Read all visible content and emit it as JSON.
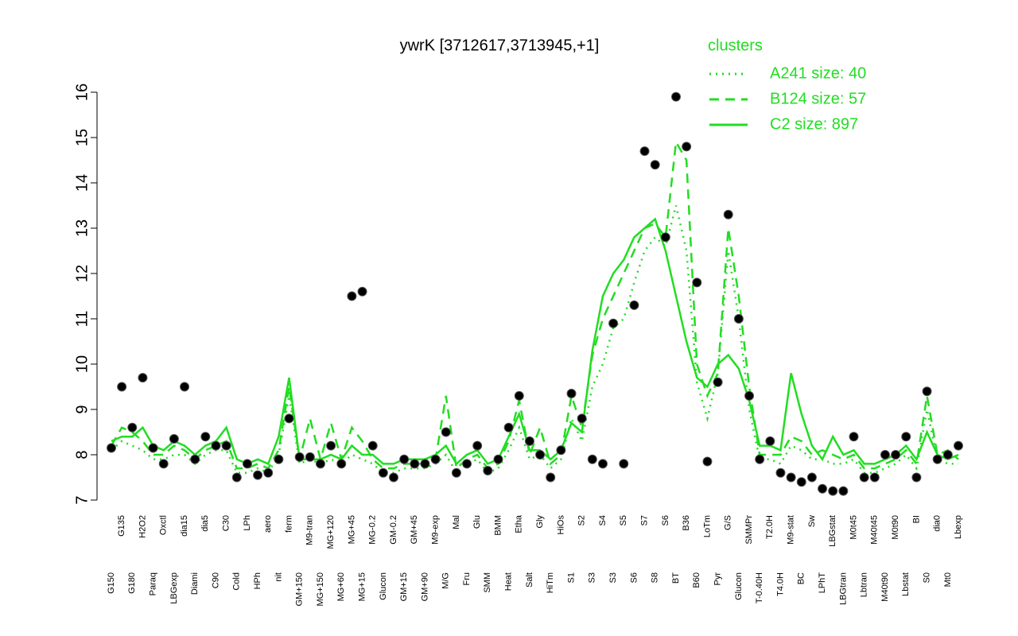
{
  "chart_data": {
    "type": "line",
    "title": "ywrK [3712617,3713945,+1]",
    "legend_title": "clusters",
    "ylim": [
      7,
      16
    ],
    "yticks": [
      7,
      8,
      9,
      10,
      11,
      12,
      13,
      14,
      15,
      16
    ],
    "categories": [
      "G150",
      "G135",
      "G180",
      "H2O2",
      "Paraq",
      "Oxctl",
      "LBGexp",
      "dia15",
      "Diami",
      "dia5",
      "C90",
      "C30",
      "Cold",
      "LPh",
      "HPh",
      "aero",
      "nit",
      "ferm",
      "GM+150",
      "M9-tran",
      "MG+150",
      "MG+120",
      "MG+60",
      "MG+45",
      "MG+15",
      "MG-0.2",
      "Glucon",
      "GM-0.2",
      "GM+15",
      "GM+45",
      "GM+90",
      "M9-exp",
      "M/G",
      "Mal",
      "Fru",
      "Glu",
      "SMM",
      "BMM",
      "Heat",
      "Etha",
      "Salt",
      "Gly",
      "HiTm",
      "HiOs",
      "S1",
      "S2",
      "S3",
      "S4",
      "S3",
      "S5",
      "S6",
      "S7",
      "S8",
      "S6",
      "BT",
      "B36",
      "B60",
      "LoTm",
      "Pyr",
      "G/S",
      "Glucon",
      "SMMPr",
      "T-0.40H",
      "T2.0H",
      "T4.0H",
      "M9-stat",
      "BC",
      "Sw",
      "LPhT",
      "LBGstat",
      "LBGtran",
      "M0t45",
      "Lbtran",
      "M40t45",
      "M40t90",
      "M0t90",
      "Lbstat",
      "BI",
      "S0",
      "dia0",
      "Mt0",
      "Lbexp"
    ],
    "points": {
      "color": "#000000",
      "values": [
        8.15,
        9.5,
        8.6,
        9.7,
        8.15,
        7.8,
        8.35,
        9.5,
        7.9,
        8.4,
        8.2,
        8.2,
        7.5,
        7.8,
        7.55,
        7.6,
        7.9,
        8.8,
        7.95,
        7.95,
        7.8,
        8.2,
        7.8,
        11.5,
        11.6,
        8.2,
        7.6,
        7.5,
        7.9,
        7.8,
        7.8,
        7.9,
        8.5,
        7.6,
        7.8,
        8.2,
        7.65,
        7.9,
        8.6,
        9.3,
        8.3,
        8.0,
        7.5,
        8.1,
        9.35,
        8.8,
        7.9,
        7.8,
        10.9,
        7.8,
        11.3,
        14.7,
        14.4,
        12.8,
        15.9,
        14.8,
        11.8,
        7.85,
        9.6,
        13.3,
        11.0,
        9.3,
        7.9,
        8.3,
        7.6,
        7.5,
        7.4,
        7.5,
        7.25,
        7.2,
        7.2,
        8.4,
        7.5,
        7.5,
        8.0,
        8.0,
        8.4,
        7.5,
        9.4,
        7.9,
        8.0,
        8.2
      ]
    },
    "series": [
      {
        "name": "A241 size: 40",
        "color": "#22dd22",
        "dash": "dotted",
        "values": [
          8.1,
          8.3,
          8.2,
          8.1,
          7.9,
          7.9,
          8.0,
          8.0,
          7.8,
          8.0,
          8.1,
          8.1,
          7.6,
          7.6,
          7.7,
          7.6,
          8.0,
          9.3,
          7.8,
          7.9,
          7.8,
          7.9,
          7.8,
          8.0,
          7.9,
          7.8,
          7.6,
          7.6,
          7.7,
          7.7,
          7.7,
          7.8,
          8.0,
          7.6,
          7.8,
          7.9,
          7.6,
          7.7,
          8.1,
          8.6,
          7.9,
          8.0,
          7.7,
          7.9,
          8.8,
          8.3,
          9.5,
          10.0,
          10.8,
          11.0,
          11.8,
          12.5,
          12.8,
          12.6,
          13.5,
          12.5,
          9.6,
          8.8,
          9.8,
          12.5,
          11.0,
          9.0,
          7.9,
          7.9,
          7.8,
          8.2,
          8.1,
          7.9,
          7.9,
          7.8,
          7.8,
          7.9,
          7.6,
          7.6,
          7.7,
          7.8,
          8.0,
          7.7,
          9.0,
          7.9,
          7.8,
          7.8
        ]
      },
      {
        "name": "B124 size: 57",
        "color": "#22dd22",
        "dash": "dashed",
        "values": [
          8.2,
          8.6,
          8.5,
          8.3,
          8.0,
          8.0,
          8.2,
          8.1,
          7.9,
          8.1,
          8.2,
          8.3,
          7.7,
          7.7,
          7.8,
          7.7,
          8.1,
          9.5,
          7.9,
          8.8,
          7.9,
          8.7,
          7.9,
          8.6,
          8.3,
          7.9,
          7.7,
          7.7,
          7.8,
          7.8,
          7.8,
          7.9,
          9.3,
          7.7,
          7.9,
          8.0,
          7.7,
          7.8,
          8.3,
          9.2,
          8.0,
          8.6,
          7.8,
          8.0,
          9.3,
          8.6,
          10.2,
          11.0,
          11.5,
          12.0,
          12.5,
          13.0,
          13.1,
          12.8,
          14.9,
          14.5,
          10.0,
          9.3,
          9.8,
          13.0,
          11.5,
          9.5,
          8.0,
          8.0,
          8.0,
          8.4,
          8.3,
          8.0,
          8.1,
          8.0,
          7.9,
          8.0,
          7.7,
          7.7,
          7.8,
          7.9,
          8.1,
          7.8,
          9.3,
          8.0,
          8.1,
          7.9
        ]
      },
      {
        "name": "C2 size: 897",
        "color": "#22dd22",
        "dash": "solid",
        "values": [
          8.3,
          8.4,
          8.4,
          8.6,
          8.2,
          8.1,
          8.3,
          8.2,
          8.0,
          8.2,
          8.3,
          8.6,
          7.9,
          7.8,
          7.9,
          7.8,
          8.4,
          9.7,
          7.9,
          7.9,
          7.9,
          8.0,
          7.9,
          8.2,
          8.0,
          8.0,
          7.8,
          7.8,
          7.9,
          7.9,
          7.9,
          8.0,
          8.2,
          7.8,
          8.0,
          8.1,
          7.8,
          7.9,
          8.4,
          8.9,
          8.1,
          8.1,
          7.9,
          8.1,
          8.7,
          8.5,
          10.3,
          11.5,
          12.0,
          12.3,
          12.8,
          13.0,
          13.2,
          12.5,
          11.5,
          10.5,
          9.7,
          9.5,
          10.0,
          10.2,
          9.9,
          9.2,
          8.2,
          8.2,
          8.1,
          9.8,
          8.9,
          8.2,
          7.9,
          8.4,
          8.0,
          8.1,
          7.8,
          7.8,
          7.9,
          8.0,
          8.2,
          7.9,
          8.5,
          8.0,
          7.9,
          8.0
        ]
      }
    ]
  }
}
